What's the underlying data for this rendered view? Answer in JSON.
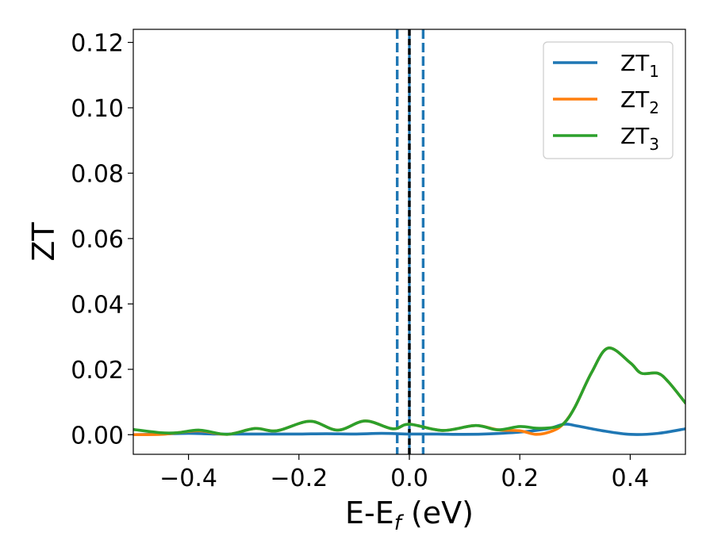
{
  "chart_data": {
    "type": "line",
    "xlabel": {
      "main": "E-E",
      "sub": "f",
      "suffix": " (eV)"
    },
    "ylabel": "ZT",
    "xlim": [
      -0.5,
      0.5
    ],
    "ylim": [
      -0.006,
      0.124
    ],
    "xticks": [
      -0.4,
      -0.2,
      0.0,
      0.2,
      0.4
    ],
    "xtick_labels": [
      "−0.4",
      "−0.2",
      "0.0",
      "0.2",
      "0.4"
    ],
    "yticks": [
      0.0,
      0.02,
      0.04,
      0.06,
      0.08,
      0.1,
      0.12
    ],
    "ytick_labels": [
      "0.00",
      "0.02",
      "0.04",
      "0.06",
      "0.08",
      "0.10",
      "0.12"
    ],
    "grid": false,
    "legend_position": "top-right",
    "vlines": [
      {
        "x": -0.022,
        "style": "dashed",
        "color": "#1f77b4"
      },
      {
        "x": 0.025,
        "style": "dashed",
        "color": "#1f77b4"
      },
      {
        "x": 0.0,
        "style": "solid",
        "color": "#1f77b4"
      },
      {
        "x": 0.0,
        "style": "dashed",
        "color": "#000000"
      }
    ],
    "series": [
      {
        "name_main": "ZT",
        "name_sub": "1",
        "color": "#1f77b4",
        "x": [
          -0.5,
          -0.45,
          -0.4,
          -0.35,
          -0.3,
          -0.25,
          -0.2,
          -0.15,
          -0.1,
          -0.05,
          0.0,
          0.05,
          0.1,
          0.15,
          0.2,
          0.25,
          0.28,
          0.3,
          0.35,
          0.4,
          0.45,
          0.5
        ],
        "y": [
          0.0,
          0.0002,
          0.0004,
          0.0002,
          0.0002,
          0.0002,
          0.0002,
          0.0003,
          0.0002,
          0.0004,
          0.0002,
          0.0002,
          0.0001,
          0.0003,
          0.0008,
          0.0018,
          0.0032,
          0.0028,
          0.0012,
          0.0001,
          0.0004,
          0.0018
        ]
      },
      {
        "name_main": "ZT",
        "name_sub": "2",
        "color": "#ff7f0e",
        "x": [
          -0.5,
          -0.45,
          -0.42,
          -0.38,
          -0.33,
          -0.28,
          -0.24,
          -0.18,
          -0.13,
          -0.08,
          -0.03,
          0.0,
          0.06,
          0.12,
          0.16,
          0.2,
          0.23,
          0.26,
          0.28,
          0.3,
          0.33,
          0.36,
          0.4,
          0.42,
          0.45,
          0.47,
          0.5
        ],
        "y": [
          0.0,
          0.0001,
          0.0006,
          0.0012,
          0.0001,
          0.0019,
          0.0012,
          0.0041,
          0.0014,
          0.0042,
          0.0018,
          0.0032,
          0.0013,
          0.0028,
          0.0015,
          0.0012,
          0.0001,
          0.0012,
          0.0035,
          0.0085,
          0.019,
          0.0265,
          0.022,
          0.0188,
          0.0188,
          0.016,
          0.0097
        ]
      },
      {
        "name_main": "ZT",
        "name_sub": "3",
        "color": "#2ca02c",
        "x": [
          -0.5,
          -0.45,
          -0.42,
          -0.38,
          -0.33,
          -0.28,
          -0.24,
          -0.18,
          -0.13,
          -0.08,
          -0.03,
          0.0,
          0.06,
          0.12,
          0.16,
          0.2,
          0.23,
          0.26,
          0.28,
          0.3,
          0.33,
          0.36,
          0.4,
          0.42,
          0.45,
          0.47,
          0.5
        ],
        "y": [
          0.0016,
          0.0006,
          0.0006,
          0.0014,
          0.0001,
          0.0019,
          0.0012,
          0.0041,
          0.0014,
          0.0042,
          0.0018,
          0.0032,
          0.0013,
          0.0028,
          0.0015,
          0.0025,
          0.002,
          0.0022,
          0.0035,
          0.0085,
          0.019,
          0.0265,
          0.022,
          0.0188,
          0.0188,
          0.016,
          0.0097
        ]
      }
    ]
  }
}
